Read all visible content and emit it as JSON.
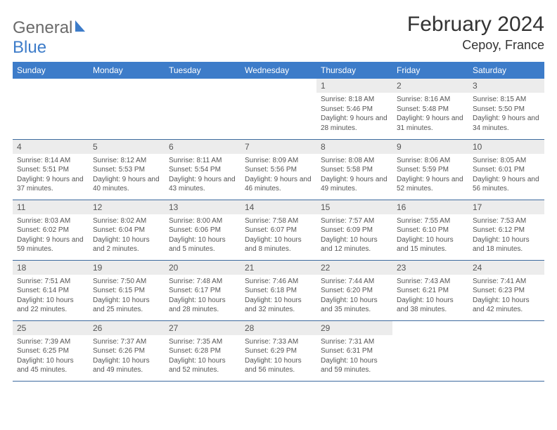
{
  "brand": {
    "name_a": "General",
    "name_b": "Blue"
  },
  "title": "February 2024",
  "location": "Cepoy, France",
  "colors": {
    "header_bg": "#3d7cc9",
    "daynum_bg": "#ececec",
    "text": "#555555",
    "rule": "#3d6a9e"
  },
  "weekdays": [
    "Sunday",
    "Monday",
    "Tuesday",
    "Wednesday",
    "Thursday",
    "Friday",
    "Saturday"
  ],
  "days": {
    "1": {
      "sunrise": "8:18 AM",
      "sunset": "5:46 PM",
      "daylight": "9 hours and 28 minutes."
    },
    "2": {
      "sunrise": "8:16 AM",
      "sunset": "5:48 PM",
      "daylight": "9 hours and 31 minutes."
    },
    "3": {
      "sunrise": "8:15 AM",
      "sunset": "5:50 PM",
      "daylight": "9 hours and 34 minutes."
    },
    "4": {
      "sunrise": "8:14 AM",
      "sunset": "5:51 PM",
      "daylight": "9 hours and 37 minutes."
    },
    "5": {
      "sunrise": "8:12 AM",
      "sunset": "5:53 PM",
      "daylight": "9 hours and 40 minutes."
    },
    "6": {
      "sunrise": "8:11 AM",
      "sunset": "5:54 PM",
      "daylight": "9 hours and 43 minutes."
    },
    "7": {
      "sunrise": "8:09 AM",
      "sunset": "5:56 PM",
      "daylight": "9 hours and 46 minutes."
    },
    "8": {
      "sunrise": "8:08 AM",
      "sunset": "5:58 PM",
      "daylight": "9 hours and 49 minutes."
    },
    "9": {
      "sunrise": "8:06 AM",
      "sunset": "5:59 PM",
      "daylight": "9 hours and 52 minutes."
    },
    "10": {
      "sunrise": "8:05 AM",
      "sunset": "6:01 PM",
      "daylight": "9 hours and 56 minutes."
    },
    "11": {
      "sunrise": "8:03 AM",
      "sunset": "6:02 PM",
      "daylight": "9 hours and 59 minutes."
    },
    "12": {
      "sunrise": "8:02 AM",
      "sunset": "6:04 PM",
      "daylight": "10 hours and 2 minutes."
    },
    "13": {
      "sunrise": "8:00 AM",
      "sunset": "6:06 PM",
      "daylight": "10 hours and 5 minutes."
    },
    "14": {
      "sunrise": "7:58 AM",
      "sunset": "6:07 PM",
      "daylight": "10 hours and 8 minutes."
    },
    "15": {
      "sunrise": "7:57 AM",
      "sunset": "6:09 PM",
      "daylight": "10 hours and 12 minutes."
    },
    "16": {
      "sunrise": "7:55 AM",
      "sunset": "6:10 PM",
      "daylight": "10 hours and 15 minutes."
    },
    "17": {
      "sunrise": "7:53 AM",
      "sunset": "6:12 PM",
      "daylight": "10 hours and 18 minutes."
    },
    "18": {
      "sunrise": "7:51 AM",
      "sunset": "6:14 PM",
      "daylight": "10 hours and 22 minutes."
    },
    "19": {
      "sunrise": "7:50 AM",
      "sunset": "6:15 PM",
      "daylight": "10 hours and 25 minutes."
    },
    "20": {
      "sunrise": "7:48 AM",
      "sunset": "6:17 PM",
      "daylight": "10 hours and 28 minutes."
    },
    "21": {
      "sunrise": "7:46 AM",
      "sunset": "6:18 PM",
      "daylight": "10 hours and 32 minutes."
    },
    "22": {
      "sunrise": "7:44 AM",
      "sunset": "6:20 PM",
      "daylight": "10 hours and 35 minutes."
    },
    "23": {
      "sunrise": "7:43 AM",
      "sunset": "6:21 PM",
      "daylight": "10 hours and 38 minutes."
    },
    "24": {
      "sunrise": "7:41 AM",
      "sunset": "6:23 PM",
      "daylight": "10 hours and 42 minutes."
    },
    "25": {
      "sunrise": "7:39 AM",
      "sunset": "6:25 PM",
      "daylight": "10 hours and 45 minutes."
    },
    "26": {
      "sunrise": "7:37 AM",
      "sunset": "6:26 PM",
      "daylight": "10 hours and 49 minutes."
    },
    "27": {
      "sunrise": "7:35 AM",
      "sunset": "6:28 PM",
      "daylight": "10 hours and 52 minutes."
    },
    "28": {
      "sunrise": "7:33 AM",
      "sunset": "6:29 PM",
      "daylight": "10 hours and 56 minutes."
    },
    "29": {
      "sunrise": "7:31 AM",
      "sunset": "6:31 PM",
      "daylight": "10 hours and 59 minutes."
    }
  },
  "layout": {
    "first_day_column": 4,
    "num_days": 29,
    "labels": {
      "sunrise": "Sunrise: ",
      "sunset": "Sunset: ",
      "daylight": "Daylight: "
    }
  }
}
